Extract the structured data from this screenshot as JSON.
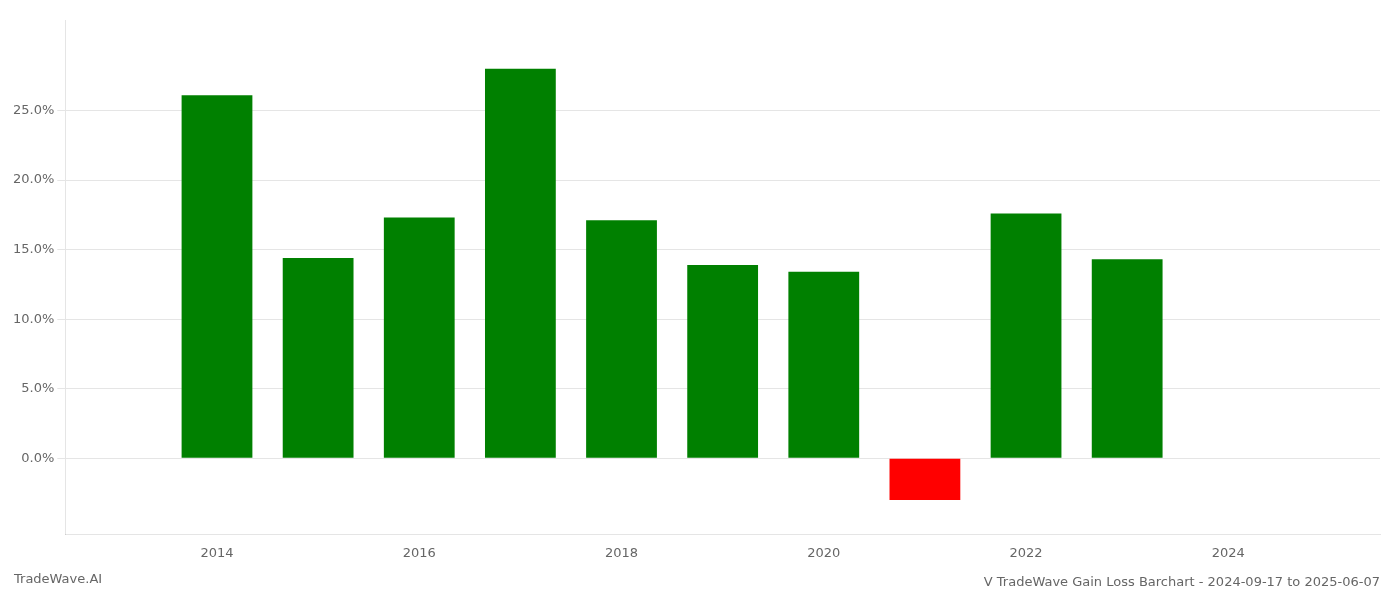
{
  "chart_data": {
    "type": "bar",
    "title": "V TradeWave Gain Loss Barchart - 2024-09-17 to 2025-06-07",
    "annotations": [
      "TradeWave.AI"
    ],
    "x": [
      2014,
      2015,
      2016,
      2017,
      2018,
      2019,
      2020,
      2021,
      2022,
      2023
    ],
    "values": [
      0.261,
      0.144,
      0.173,
      0.28,
      0.171,
      0.139,
      0.134,
      -0.03,
      0.176,
      0.143
    ],
    "colors": [
      "#008000",
      "#008000",
      "#008000",
      "#008000",
      "#008000",
      "#008000",
      "#008000",
      "#ff0000",
      "#008000",
      "#008000"
    ],
    "xlim": [
      2012.5,
      2025.5
    ],
    "xticks": [
      2014,
      2016,
      2018,
      2020,
      2022,
      2024
    ],
    "ylim": [
      -0.055,
      0.315
    ],
    "yticks": [
      {
        "value": 0.0,
        "label": "0.0%"
      },
      {
        "value": 0.05,
        "label": "5.0%"
      },
      {
        "value": 0.1,
        "label": "10.0%"
      },
      {
        "value": 0.15,
        "label": "15.0%"
      },
      {
        "value": 0.2,
        "label": "20.0%"
      },
      {
        "value": 0.25,
        "label": "25.0%"
      }
    ],
    "grid": "y",
    "legend": false
  }
}
